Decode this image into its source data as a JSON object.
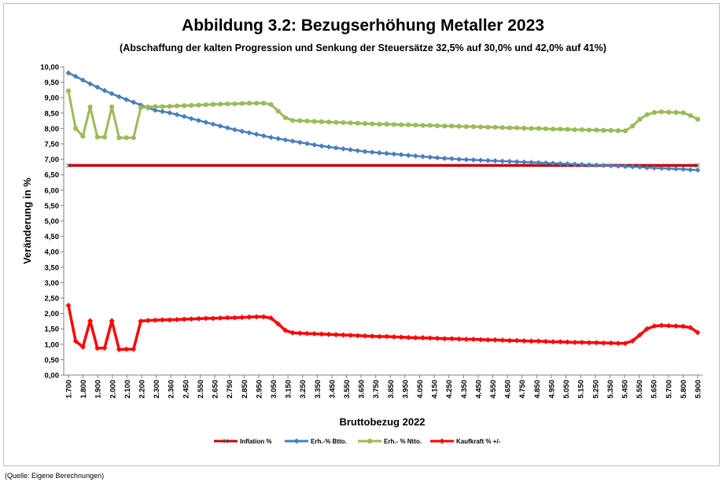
{
  "chart_data": {
    "type": "line",
    "title": "Abbildung 3.2: Bezugserhöhung Metaller 2023",
    "subtitle": "(Abschaffung der kalten Progression und Senkung der Steuersätze 32,5% auf 30,0% und 42,0% auf 41%)",
    "xlabel": "Bruttobezug 2022",
    "ylabel": "Veränderung in %",
    "ylim": [
      0,
      10
    ],
    "y_ticks": [
      "0,00",
      "0,50",
      "1,00",
      "1,50",
      "2,00",
      "2,50",
      "3,00",
      "3,50",
      "4,00",
      "4,50",
      "5,00",
      "5,50",
      "6,00",
      "6,50",
      "7,00",
      "7,50",
      "8,00",
      "8,50",
      "9,00",
      "9,50",
      "10,00"
    ],
    "x_ticks": [
      "1.700",
      "1.800",
      "1.900",
      "2.000",
      "2.100",
      "2.200",
      "2.300",
      "2.360",
      "2.450",
      "2.550",
      "2.650",
      "2.750",
      "2.850",
      "2.950",
      "3.050",
      "3.150",
      "3.250",
      "3.350",
      "3.450",
      "3.550",
      "3.650",
      "3.750",
      "3.850",
      "3.950",
      "4.050",
      "4.150",
      "4.250",
      "4.350",
      "4.450",
      "4.550",
      "4.650",
      "4.750",
      "4.850",
      "4.950",
      "5.050",
      "5.150",
      "5.250",
      "5.350",
      "5.450",
      "5.550",
      "5.650",
      "5.700",
      "5.800",
      "5.900"
    ],
    "x": [
      1700,
      1750,
      1800,
      1850,
      1900,
      1950,
      2000,
      2050,
      2100,
      2150,
      2200,
      2250,
      2300,
      2330,
      2360,
      2405,
      2450,
      2500,
      2550,
      2600,
      2650,
      2700,
      2750,
      2800,
      2850,
      2900,
      2950,
      3000,
      3050,
      3100,
      3150,
      3200,
      3250,
      3300,
      3350,
      3400,
      3450,
      3500,
      3550,
      3600,
      3650,
      3700,
      3750,
      3800,
      3850,
      3900,
      3950,
      4000,
      4050,
      4100,
      4150,
      4200,
      4250,
      4300,
      4350,
      4400,
      4450,
      4500,
      4550,
      4600,
      4650,
      4700,
      4750,
      4800,
      4850,
      4900,
      4950,
      5000,
      5050,
      5100,
      5150,
      5200,
      5250,
      5300,
      5350,
      5400,
      5450,
      5500,
      5550,
      5600,
      5650,
      5675,
      5700,
      5750,
      5800,
      5850,
      5900,
      5925
    ],
    "series": [
      {
        "name": "Inflation %",
        "color": "#c00000",
        "marker": "x",
        "values": [
          6.8,
          6.8,
          6.8,
          6.8,
          6.8,
          6.8,
          6.8,
          6.8,
          6.8,
          6.8,
          6.8,
          6.8,
          6.8,
          6.8,
          6.8,
          6.8,
          6.8,
          6.8,
          6.8,
          6.8,
          6.8,
          6.8,
          6.8,
          6.8,
          6.8,
          6.8,
          6.8,
          6.8,
          6.8,
          6.8,
          6.8,
          6.8,
          6.8,
          6.8,
          6.8,
          6.8,
          6.8,
          6.8,
          6.8,
          6.8,
          6.8,
          6.8,
          6.8,
          6.8,
          6.8,
          6.8,
          6.8,
          6.8,
          6.8,
          6.8,
          6.8,
          6.8,
          6.8,
          6.8,
          6.8,
          6.8,
          6.8,
          6.8,
          6.8,
          6.8,
          6.8,
          6.8,
          6.8,
          6.8,
          6.8,
          6.8,
          6.8,
          6.8,
          6.8,
          6.8,
          6.8,
          6.8,
          6.8,
          6.8,
          6.8,
          6.8,
          6.8,
          6.8,
          6.8,
          6.8,
          6.8,
          6.8,
          6.8,
          6.8,
          6.8,
          6.8,
          6.8,
          6.8
        ]
      },
      {
        "name": "Erh.-% Btto.",
        "color": "#4a7ebb",
        "marker": "diamond",
        "values": [
          9.8,
          9.69,
          9.57,
          9.45,
          9.34,
          9.23,
          9.13,
          9.03,
          8.94,
          8.85,
          8.76,
          8.67,
          8.59,
          8.55,
          8.51,
          8.45,
          8.39,
          8.32,
          8.26,
          8.2,
          8.14,
          8.08,
          8.02,
          7.96,
          7.91,
          7.86,
          7.81,
          7.76,
          7.71,
          7.67,
          7.63,
          7.59,
          7.55,
          7.51,
          7.47,
          7.43,
          7.4,
          7.37,
          7.34,
          7.31,
          7.28,
          7.25,
          7.23,
          7.21,
          7.19,
          7.17,
          7.15,
          7.13,
          7.11,
          7.09,
          7.07,
          7.05,
          7.03,
          7.02,
          7.0,
          6.99,
          6.98,
          6.97,
          6.96,
          6.95,
          6.94,
          6.93,
          6.92,
          6.91,
          6.9,
          6.89,
          6.88,
          6.87,
          6.86,
          6.85,
          6.84,
          6.83,
          6.82,
          6.81,
          6.8,
          6.79,
          6.78,
          6.77,
          6.76,
          6.75,
          6.73,
          6.72,
          6.71,
          6.7,
          6.69,
          6.68,
          6.66,
          6.65
        ]
      },
      {
        "name": "Erh.- % Ntto.",
        "color": "#9bbb59",
        "marker": "circle",
        "values": [
          9.22,
          8.0,
          7.75,
          8.7,
          7.72,
          7.72,
          8.7,
          7.7,
          7.7,
          7.7,
          8.68,
          8.7,
          8.71,
          8.71,
          8.72,
          8.73,
          8.74,
          8.75,
          8.76,
          8.77,
          8.78,
          8.79,
          8.8,
          8.8,
          8.81,
          8.82,
          8.82,
          8.82,
          8.78,
          8.56,
          8.35,
          8.26,
          8.25,
          8.24,
          8.23,
          8.22,
          8.21,
          8.2,
          8.19,
          8.18,
          8.17,
          8.16,
          8.15,
          8.14,
          8.14,
          8.13,
          8.12,
          8.12,
          8.11,
          8.1,
          8.1,
          8.09,
          8.08,
          8.08,
          8.07,
          8.06,
          8.06,
          8.05,
          8.04,
          8.04,
          8.03,
          8.02,
          8.02,
          8.01,
          8.0,
          8.0,
          7.99,
          7.98,
          7.98,
          7.97,
          7.96,
          7.96,
          7.95,
          7.95,
          7.94,
          7.94,
          7.93,
          7.92,
          8.08,
          8.3,
          8.45,
          8.52,
          8.54,
          8.53,
          8.52,
          8.51,
          8.42,
          8.3
        ]
      },
      {
        "name": "Kaufkraft % +/-",
        "color": "#ff0000",
        "marker": "diamond",
        "values": [
          2.26,
          1.1,
          0.91,
          1.76,
          0.87,
          0.88,
          1.76,
          0.83,
          0.84,
          0.84,
          1.75,
          1.77,
          1.78,
          1.79,
          1.79,
          1.8,
          1.81,
          1.82,
          1.83,
          1.84,
          1.84,
          1.85,
          1.86,
          1.86,
          1.87,
          1.88,
          1.89,
          1.89,
          1.85,
          1.66,
          1.45,
          1.37,
          1.36,
          1.35,
          1.34,
          1.33,
          1.32,
          1.31,
          1.3,
          1.29,
          1.28,
          1.27,
          1.26,
          1.25,
          1.25,
          1.24,
          1.23,
          1.22,
          1.21,
          1.21,
          1.2,
          1.19,
          1.18,
          1.18,
          1.17,
          1.16,
          1.16,
          1.15,
          1.14,
          1.14,
          1.13,
          1.12,
          1.12,
          1.11,
          1.1,
          1.1,
          1.09,
          1.08,
          1.08,
          1.07,
          1.06,
          1.06,
          1.05,
          1.05,
          1.04,
          1.04,
          1.03,
          1.03,
          1.11,
          1.3,
          1.5,
          1.59,
          1.61,
          1.6,
          1.59,
          1.58,
          1.54,
          1.38
        ]
      }
    ],
    "legend_position": "bottom",
    "grid": false
  },
  "source_note": "(Quelle: Eigene Berechnungen)"
}
